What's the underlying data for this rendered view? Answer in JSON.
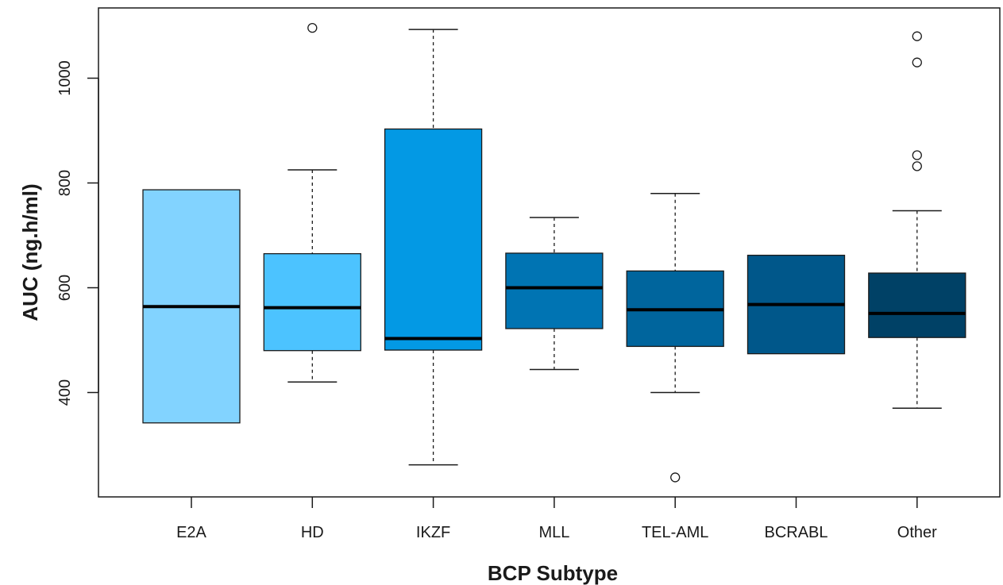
{
  "chart_data": {
    "type": "boxplot",
    "title": "",
    "xlabel": "BCP Subtype",
    "ylabel": "AUC (ng.h/ml)",
    "ylim": [
      230,
      1110
    ],
    "yticks": [
      400,
      600,
      800,
      1000
    ],
    "grid": false,
    "categories": [
      {
        "name": "E2A",
        "color": "#82d3ff",
        "min": 342,
        "q1": 342,
        "median": 564,
        "q3": 787,
        "max": 787,
        "outliers": []
      },
      {
        "name": "HD",
        "color": "#4cc3ff",
        "min": 420,
        "q1": 480,
        "median": 562,
        "q3": 665,
        "max": 825,
        "outliers": [
          1096
        ]
      },
      {
        "name": "IKZF",
        "color": "#0399e4",
        "min": 262,
        "q1": 481,
        "median": 503,
        "q3": 903,
        "max": 1093,
        "outliers": []
      },
      {
        "name": "MLL",
        "color": "#0074b3",
        "min": 444,
        "q1": 522,
        "median": 600,
        "q3": 666,
        "max": 734,
        "outliers": []
      },
      {
        "name": "TEL-AML",
        "color": "#00659d",
        "min": 400,
        "q1": 488,
        "median": 558,
        "q3": 632,
        "max": 780,
        "outliers": [
          238
        ]
      },
      {
        "name": "BCRABL",
        "color": "#00578a",
        "min": 474,
        "q1": 474,
        "median": 568,
        "q3": 662,
        "max": 662,
        "outliers": []
      },
      {
        "name": "Other",
        "color": "#004166",
        "min": 370,
        "q1": 505,
        "median": 551,
        "q3": 628,
        "max": 747,
        "outliers": [
          832,
          853,
          1030,
          1080
        ]
      }
    ]
  }
}
